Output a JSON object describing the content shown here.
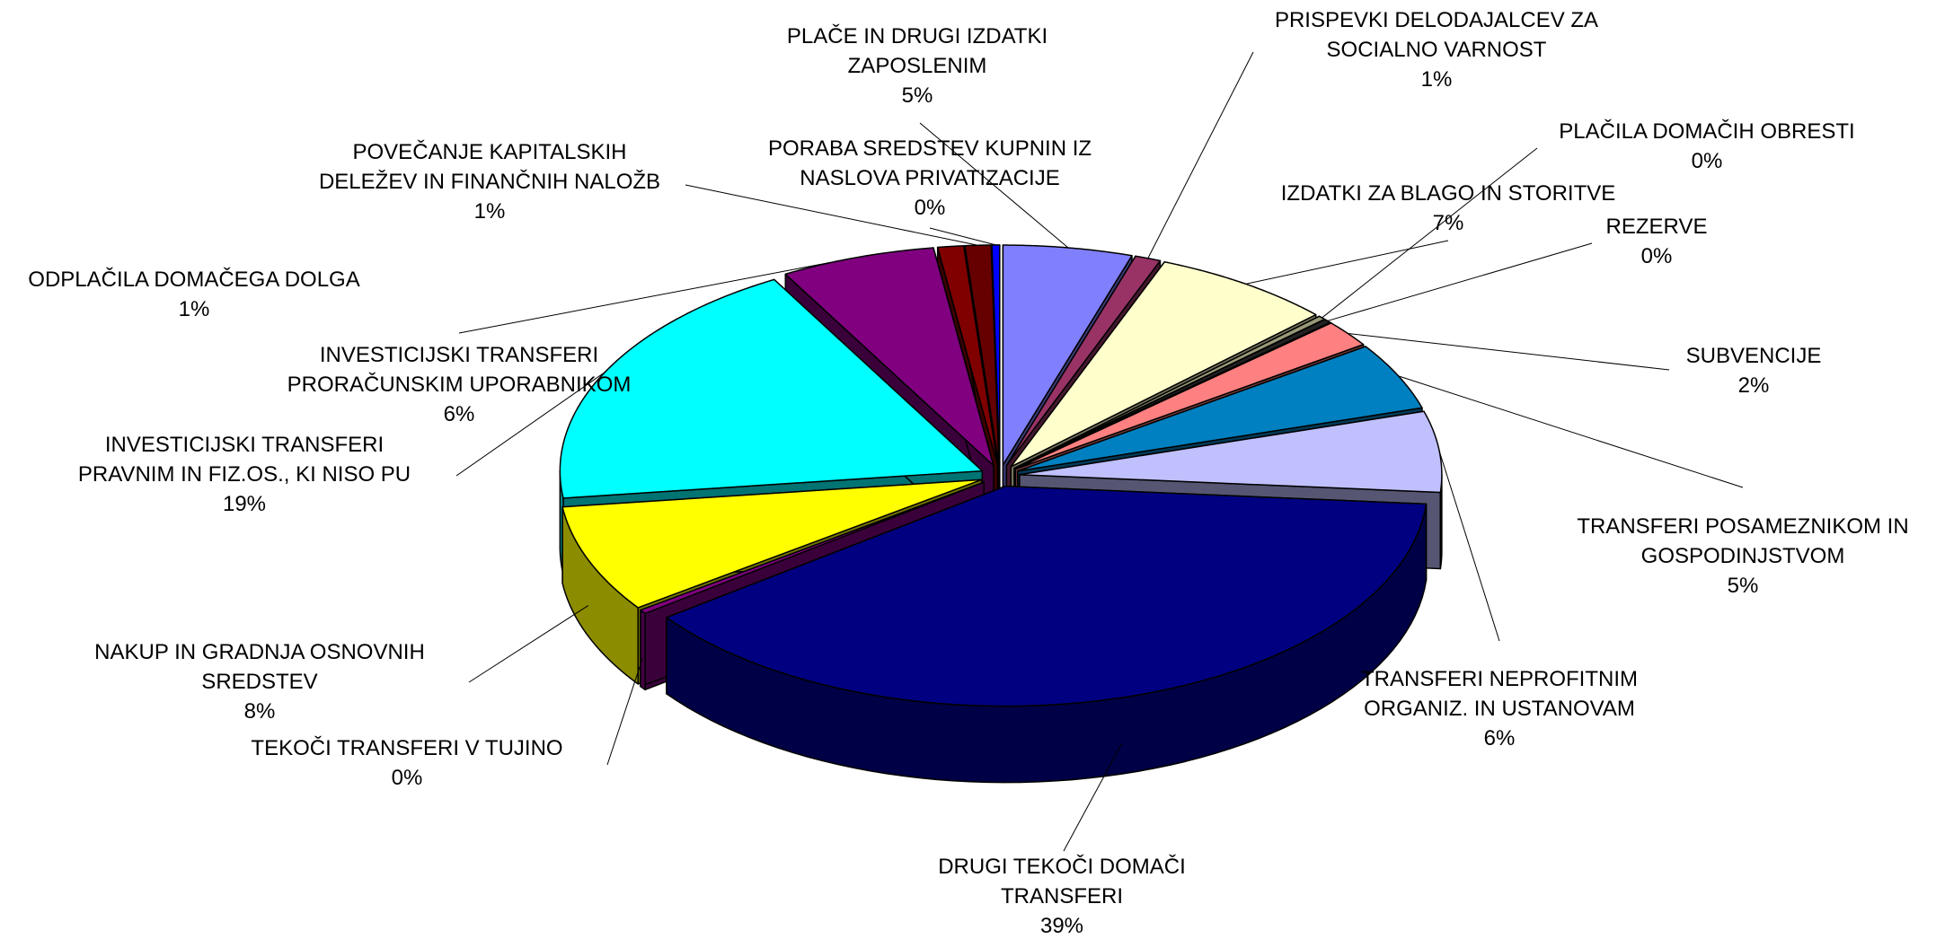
{
  "chart_data": {
    "type": "pie",
    "categories": [
      "PLAČE IN DRUGI IZDATKI\nZAPOSLENIM",
      "PRISPEVKI DELODAJALCEV ZA\nSOCIALNO VARNOST",
      "IZDATKI ZA BLAGO IN STORITVE",
      "PLAČILA DOMAČIH OBRESTI",
      "REZERVE",
      "SUBVENCIJE",
      "TRANSFERI POSAMEZNIKOM IN\nGOSPODINJSTVOM",
      "TRANSFERI NEPROFITNIM\nORGANIZ. IN USTANOVAM",
      "DRUGI TEKOČI DOMAČI\nTRANSFERI",
      "TEKOČI TRANSFERI V TUJINO",
      "NAKUP IN GRADNJA OSNOVNIH\nSREDSTEV",
      "INVESTICIJSKI TRANSFERI\nPRAVNIM IN FIZ.OS., KI NISO PU",
      "INVESTICIJSKI TRANSFERI\nPRORAČUNSKIM UPORABNIKOM",
      "ODPLAČILA DOMAČEGA DOLGA",
      "POVEČANJE KAPITALSKIH\nDELEŽEV IN FINANČNIH NALOŽB",
      "PORABA SREDSTEV KUPNIN IZ\nNASLOVA PRIVATIZACIJE"
    ],
    "values": [
      5,
      1,
      7,
      0.3,
      0.3,
      2,
      5,
      6,
      39,
      0.3,
      8,
      19,
      6,
      1,
      1,
      0.3
    ],
    "value_labels": [
      "5%",
      "1%",
      "7%",
      "0%",
      "0%",
      "2%",
      "5%",
      "6%",
      "39%",
      "0%",
      "8%",
      "19%",
      "6%",
      "1%",
      "1%",
      "0%"
    ],
    "colors": [
      "#8080ff",
      "#993366",
      "#ffffcc",
      "#999977",
      "#222222",
      "#ff8080",
      "#0080c0",
      "#c0c0ff",
      "#000080",
      "#800080",
      "#ffff00",
      "#00ffff",
      "#800080",
      "#800000",
      "#660000",
      "#0000ff"
    ]
  }
}
